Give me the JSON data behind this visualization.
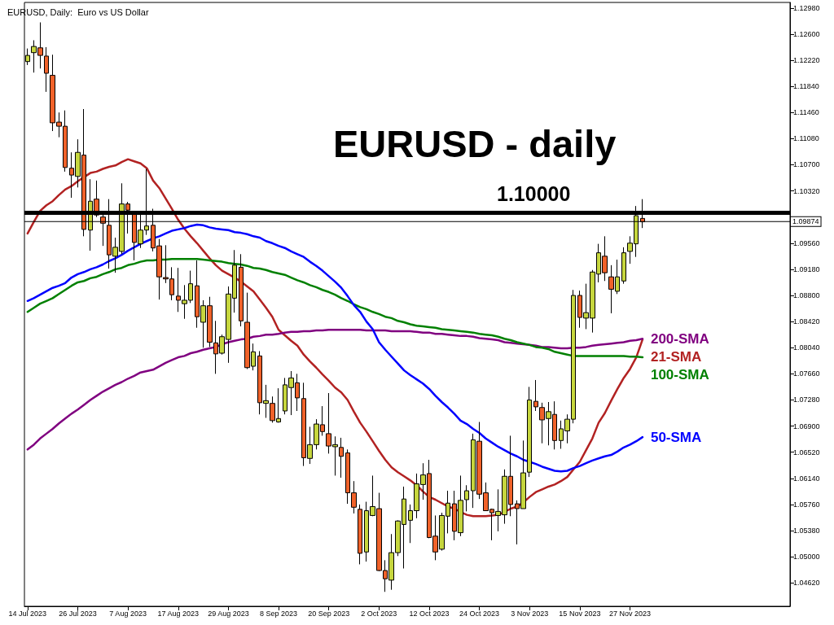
{
  "chart_data": {
    "type": "candlestick",
    "title": "EURUSD - daily",
    "subtitle": "EURUSD, Daily:  Euro vs US Dollar",
    "categories": [
      "14 Jul 2023",
      null,
      null,
      null,
      null,
      null,
      null,
      null,
      "26 Jul 2023",
      null,
      null,
      null,
      null,
      null,
      null,
      null,
      "7 Aug 2023",
      null,
      null,
      null,
      null,
      null,
      null,
      null,
      "17 Aug 2023",
      null,
      null,
      null,
      null,
      null,
      null,
      null,
      "29 Aug 2023",
      null,
      null,
      null,
      null,
      null,
      null,
      null,
      "8 Sep 2023",
      null,
      null,
      null,
      null,
      null,
      null,
      null,
      "20 Sep 2023",
      null,
      null,
      null,
      null,
      null,
      null,
      null,
      "2 Oct 2023",
      null,
      null,
      null,
      null,
      null,
      null,
      null,
      "12 Oct 2023",
      null,
      null,
      null,
      null,
      null,
      null,
      null,
      "24 Oct 2023",
      null,
      null,
      null,
      null,
      null,
      null,
      null,
      "3 Nov 2023",
      null,
      null,
      null,
      null,
      null,
      null,
      null,
      "15 Nov 2023",
      null,
      null,
      null,
      null,
      null,
      null,
      null,
      "27 Nov 2023",
      null,
      null
    ],
    "ohlc": [
      [
        1.122,
        1.1239,
        1.1215,
        1.1229
      ],
      [
        1.1233,
        1.1251,
        1.1204,
        1.1242
      ],
      [
        1.124,
        1.1277,
        1.121,
        1.1229
      ],
      [
        1.1228,
        1.1241,
        1.1176,
        1.1203
      ],
      [
        1.12,
        1.123,
        1.1119,
        1.1131
      ],
      [
        1.1132,
        1.1146,
        1.111,
        1.1126
      ],
      [
        1.1126,
        1.1149,
        1.106,
        1.1066
      ],
      [
        1.1065,
        1.1088,
        1.1022,
        1.1055
      ],
      [
        1.1053,
        1.1107,
        1.1037,
        1.1088
      ],
      [
        1.1084,
        1.1151,
        1.0966,
        1.0976
      ],
      [
        1.0975,
        1.1049,
        1.0945,
        1.1017
      ],
      [
        1.102,
        1.1047,
        1.0994,
        1.0997
      ],
      [
        1.0994,
        1.1002,
        1.0952,
        1.0985
      ],
      [
        1.0982,
        1.102,
        1.0919,
        1.0939
      ],
      [
        1.0937,
        1.0964,
        1.0913,
        1.095
      ],
      [
        1.0944,
        1.1043,
        1.094,
        1.1013
      ],
      [
        1.1013,
        1.1016,
        1.097,
        1.1004
      ],
      [
        1.0998,
        1.1002,
        1.0931,
        1.0957
      ],
      [
        1.0955,
        1.0998,
        1.0949,
        1.0975
      ],
      [
        1.0975,
        1.1064,
        1.0968,
        1.0981
      ],
      [
        1.0982,
        1.1006,
        1.0944,
        1.0949
      ],
      [
        1.0952,
        1.0962,
        1.0874,
        1.0907
      ],
      [
        1.0906,
        1.0953,
        1.0898,
        1.0904
      ],
      [
        1.0904,
        1.0921,
        1.0873,
        1.0881
      ],
      [
        1.0879,
        1.092,
        1.0856,
        1.0873
      ],
      [
        1.0868,
        1.0895,
        1.0846,
        1.0873
      ],
      [
        1.0873,
        1.0916,
        1.0869,
        1.0897
      ],
      [
        1.0894,
        1.0931,
        1.0833,
        1.0849
      ],
      [
        1.0841,
        1.0873,
        1.0804,
        1.0865
      ],
      [
        1.0865,
        1.0878,
        1.0805,
        1.0812
      ],
      [
        1.0811,
        1.0843,
        1.0766,
        1.0795
      ],
      [
        1.0796,
        1.0823,
        1.0794,
        1.082
      ],
      [
        1.0816,
        1.0893,
        1.0782,
        1.0882
      ],
      [
        1.0876,
        1.0946,
        1.0855,
        1.0924
      ],
      [
        1.0921,
        1.094,
        1.0835,
        1.0843
      ],
      [
        1.0841,
        1.0884,
        1.0773,
        1.0775
      ],
      [
        1.0777,
        1.081,
        1.0771,
        1.0798
      ],
      [
        1.0792,
        1.0799,
        1.0707,
        1.0724
      ],
      [
        1.0723,
        1.075,
        1.0702,
        1.0727
      ],
      [
        1.0723,
        1.0733,
        1.0695,
        1.0698
      ],
      [
        1.0696,
        1.0745,
        1.0695,
        1.0701
      ],
      [
        1.0712,
        1.076,
        1.0707,
        1.075
      ],
      [
        1.0746,
        1.077,
        1.0706,
        1.076
      ],
      [
        1.0753,
        1.0766,
        1.0712,
        1.0731
      ],
      [
        1.073,
        1.0753,
        1.0632,
        1.0644
      ],
      [
        1.0643,
        1.0689,
        1.0635,
        1.0663
      ],
      [
        1.0663,
        1.07,
        1.0656,
        1.0693
      ],
      [
        1.0692,
        1.0719,
        1.0676,
        1.0682
      ],
      [
        1.0679,
        1.0738,
        1.065,
        1.0661
      ],
      [
        1.066,
        1.0675,
        1.0618,
        1.0663
      ],
      [
        1.0659,
        1.0673,
        1.0615,
        1.0646
      ],
      [
        1.0651,
        1.0656,
        1.0577,
        1.0593
      ],
      [
        1.0593,
        1.061,
        1.0563,
        1.0572
      ],
      [
        1.0569,
        1.0576,
        1.0489,
        1.0505
      ],
      [
        1.0507,
        1.058,
        1.0493,
        1.0567
      ],
      [
        1.056,
        1.0618,
        1.0559,
        1.0573
      ],
      [
        1.057,
        1.0593,
        1.0479,
        1.048
      ],
      [
        1.048,
        1.0495,
        1.0449,
        1.0468
      ],
      [
        1.0466,
        1.0533,
        1.0452,
        1.0506
      ],
      [
        1.0506,
        1.0553,
        1.0501,
        1.0552
      ],
      [
        1.0547,
        1.0602,
        1.0483,
        1.0584
      ],
      [
        1.0553,
        1.0576,
        1.052,
        1.0567
      ],
      [
        1.0567,
        1.0621,
        1.0556,
        1.0606
      ],
      [
        1.0605,
        1.0636,
        1.0583,
        1.0619
      ],
      [
        1.0621,
        1.0641,
        1.0527,
        1.0528
      ],
      [
        1.053,
        1.056,
        1.0495,
        1.0507
      ],
      [
        1.0511,
        1.0564,
        1.0509,
        1.056
      ],
      [
        1.0559,
        1.0596,
        1.0534,
        1.0578
      ],
      [
        1.0577,
        1.0596,
        1.0524,
        1.0537
      ],
      [
        1.0535,
        1.0618,
        1.053,
        1.0582
      ],
      [
        1.0583,
        1.0604,
        1.0566,
        1.0596
      ],
      [
        1.0596,
        1.0679,
        1.0571,
        1.067
      ],
      [
        1.0668,
        1.0696,
        1.0584,
        1.0591
      ],
      [
        1.0593,
        1.0608,
        1.0567,
        1.0567
      ],
      [
        1.0569,
        1.057,
        1.0524,
        1.0564
      ],
      [
        1.056,
        1.0598,
        1.0537,
        1.0566
      ],
      [
        1.0561,
        1.0627,
        1.0548,
        1.0617
      ],
      [
        1.0617,
        1.0676,
        1.0559,
        1.0576
      ],
      [
        1.0577,
        1.0582,
        1.0518,
        1.057
      ],
      [
        1.057,
        1.0669,
        1.057,
        1.0622
      ],
      [
        1.0623,
        1.0747,
        1.0616,
        1.0728
      ],
      [
        1.0726,
        1.0757,
        1.0712,
        1.0718
      ],
      [
        1.0717,
        1.0724,
        1.0665,
        1.0699
      ],
      [
        1.0701,
        1.0725,
        1.0662,
        1.0711
      ],
      [
        1.0707,
        1.0726,
        1.0656,
        1.0669
      ],
      [
        1.0669,
        1.0698,
        1.0657,
        1.0686
      ],
      [
        1.0683,
        1.0707,
        1.0665,
        1.07
      ],
      [
        1.07,
        1.0888,
        1.0694,
        1.088
      ],
      [
        1.088,
        1.0887,
        1.0833,
        1.0848
      ],
      [
        1.0847,
        1.0897,
        1.0831,
        1.0855
      ],
      [
        1.0847,
        1.0917,
        1.0826,
        1.0914
      ],
      [
        1.0911,
        1.0955,
        1.0899,
        1.0942
      ],
      [
        1.0937,
        1.0966,
        1.0901,
        1.0913
      ],
      [
        1.0907,
        1.0924,
        1.0854,
        1.0889
      ],
      [
        1.0886,
        1.0932,
        1.0882,
        1.0907
      ],
      [
        1.0901,
        1.095,
        1.0897,
        1.0942
      ],
      [
        1.0944,
        1.0966,
        1.0926,
        1.0956
      ],
      [
        1.0955,
        1.101,
        1.0936,
        1.0996
      ],
      [
        1.0992,
        1.102,
        1.0978,
        1.0987
      ]
    ],
    "colors": [
      "#c6d63e",
      "#c6d63e",
      "#f0622a",
      "#f0622a",
      "#f0622a",
      "#f0622a",
      "#f0622a",
      "#f0622a",
      "#c6d63e",
      "#f0622a",
      "#c6d63e",
      "#f0622a",
      "#f0622a",
      "#f0622a",
      "#c6d63e",
      "#c6d63e",
      "#f0622a",
      "#f0622a",
      "#c6d63e",
      "#c6d63e",
      "#f0622a",
      "#f0622a",
      "#f0622a",
      "#f0622a",
      "#f0622a",
      "#c6d63e",
      "#c6d63e",
      "#f0622a",
      "#c6d63e",
      "#f0622a",
      "#f0622a",
      "#c6d63e",
      "#c6d63e",
      "#c6d63e",
      "#f0622a",
      "#f0622a",
      "#c6d63e",
      "#f0622a",
      "#c6d63e",
      "#f0622a",
      "#c6d63e",
      "#c6d63e",
      "#c6d63e",
      "#f0622a",
      "#f0622a",
      "#c6d63e",
      "#c6d63e",
      "#f0622a",
      "#f0622a",
      "#c6d63e",
      "#f0622a",
      "#f0622a",
      "#f0622a",
      "#f0622a",
      "#c6d63e",
      "#c6d63e",
      "#f0622a",
      "#f0622a",
      "#c6d63e",
      "#c6d63e",
      "#c6d63e",
      "#c6d63e",
      "#c6d63e",
      "#c6d63e",
      "#f0622a",
      "#f0622a",
      "#c6d63e",
      "#c6d63e",
      "#f0622a",
      "#c6d63e",
      "#c6d63e",
      "#c6d63e",
      "#f0622a",
      "#f0622a",
      "#f0622a",
      "#c6d63e",
      "#c6d63e",
      "#f0622a",
      "#f0622a",
      "#c6d63e",
      "#c6d63e",
      "#f0622a",
      "#f0622a",
      "#c6d63e",
      "#f0622a",
      "#c6d63e",
      "#c6d63e",
      "#c6d63e",
      "#f0622a",
      "#c6d63e",
      "#c6d63e",
      "#c6d63e",
      "#f0622a",
      "#f0622a",
      "#c6d63e",
      "#c6d63e",
      "#c6d63e",
      "#c6d63e",
      "#f0622a"
    ],
    "series": [
      {
        "type": "line",
        "name": "21-SMA",
        "color": "#b22222",
        "values": [
          1.097,
          1.0987,
          1.1003,
          1.1011,
          1.1017,
          1.1026,
          1.1034,
          1.1039,
          1.1046,
          1.1052,
          1.1058,
          1.106,
          1.1064,
          1.1067,
          1.1069,
          1.1074,
          1.1078,
          1.1075,
          1.1072,
          1.1065,
          1.1047,
          1.1036,
          1.1021,
          1.1006,
          1.099,
          1.0977,
          1.0966,
          1.0956,
          1.0945,
          1.0934,
          1.0924,
          1.0916,
          1.0911,
          1.0906,
          1.09,
          1.0893,
          1.0886,
          1.0874,
          1.0862,
          1.0849,
          1.083,
          1.0822,
          1.0814,
          1.0807,
          1.0794,
          1.0784,
          1.0775,
          1.0765,
          1.0756,
          1.0746,
          1.0739,
          1.0728,
          1.0711,
          1.0695,
          1.0682,
          1.0668,
          1.0654,
          1.0641,
          1.063,
          1.0623,
          1.0617,
          1.0611,
          1.0604,
          1.0595,
          1.0587,
          1.0583,
          1.0578,
          1.0573,
          1.057,
          1.0565,
          1.0561,
          1.0559,
          1.0559,
          1.0559,
          1.056,
          1.0561,
          1.0565,
          1.057,
          1.0573,
          1.0579,
          1.0587,
          1.0594,
          1.0598,
          1.0602,
          1.0605,
          1.061,
          1.0616,
          1.0627,
          1.0638,
          1.0655,
          1.0672,
          1.0695,
          1.0709,
          1.0727,
          1.0744,
          1.076,
          1.0773,
          1.079,
          1.0816
        ]
      },
      {
        "type": "line",
        "name": "200-SMA",
        "color": "#800080",
        "values": [
          1.0656,
          1.0663,
          1.0672,
          1.0679,
          1.0686,
          1.0694,
          1.0701,
          1.0708,
          1.0714,
          1.0721,
          1.0728,
          1.0734,
          1.074,
          1.0745,
          1.075,
          1.0754,
          1.0759,
          1.0763,
          1.0768,
          1.077,
          1.0772,
          1.0777,
          1.0782,
          1.0786,
          1.079,
          1.0792,
          1.0796,
          1.0798,
          1.0801,
          1.0803,
          1.0805,
          1.0809,
          1.0812,
          1.0814,
          1.0816,
          1.0817,
          1.082,
          1.0821,
          1.0823,
          1.0823,
          1.0824,
          1.0826,
          1.0827,
          1.0827,
          1.0828,
          1.0828,
          1.0829,
          1.0829,
          1.083,
          1.083,
          1.083,
          1.083,
          1.083,
          1.083,
          1.0829,
          1.0829,
          1.0829,
          1.0829,
          1.0828,
          1.0828,
          1.0828,
          1.0828,
          1.0827,
          1.0826,
          1.0826,
          1.0824,
          1.0824,
          1.0823,
          1.0822,
          1.0821,
          1.0821,
          1.082,
          1.0818,
          1.0817,
          1.0816,
          1.0815,
          1.0812,
          1.0811,
          1.081,
          1.0809,
          1.0808,
          1.0807,
          1.0805,
          1.0805,
          1.0804,
          1.0803,
          1.0803,
          1.0804,
          1.0804,
          1.0805,
          1.0807,
          1.0808,
          1.0809,
          1.081,
          1.0811,
          1.0812,
          1.0814,
          1.0815,
          1.0817
        ]
      },
      {
        "type": "line",
        "name": "100-SMA",
        "color": "#008000",
        "values": [
          1.0856,
          1.0862,
          1.0868,
          1.0872,
          1.0876,
          1.0882,
          1.0888,
          1.0894,
          1.0899,
          1.0901,
          1.0905,
          1.0907,
          1.0911,
          1.0914,
          1.0918,
          1.092,
          1.0924,
          1.0926,
          1.0929,
          1.0931,
          1.0931,
          1.0932,
          1.0932,
          1.0933,
          1.0933,
          1.0933,
          1.0933,
          1.0933,
          1.0932,
          1.0931,
          1.093,
          1.0929,
          1.0927,
          1.0926,
          1.0925,
          1.0923,
          1.092,
          1.0919,
          1.0917,
          1.0914,
          1.0912,
          1.091,
          1.0906,
          1.0902,
          1.0899,
          1.0895,
          1.0892,
          1.0888,
          1.0885,
          1.0881,
          1.0876,
          1.0872,
          1.0867,
          1.0863,
          1.086,
          1.0856,
          1.0853,
          1.0849,
          1.0847,
          1.0843,
          1.0841,
          1.0838,
          1.0836,
          1.0835,
          1.0834,
          1.0833,
          1.0831,
          1.083,
          1.0829,
          1.0828,
          1.0827,
          1.0826,
          1.0824,
          1.0823,
          1.0822,
          1.082,
          1.0817,
          1.0815,
          1.0812,
          1.081,
          1.0808,
          1.0805,
          1.0804,
          1.0802,
          1.0798,
          1.0796,
          1.0794,
          1.0792,
          1.0792,
          1.0792,
          1.0792,
          1.0792,
          1.0792,
          1.0792,
          1.0792,
          1.0792,
          1.0791,
          1.0791,
          1.079
        ]
      },
      {
        "type": "line",
        "name": "50-SMA",
        "color": "#0000ff",
        "values": [
          1.0872,
          1.0876,
          1.0881,
          1.0886,
          1.0891,
          1.0894,
          1.0898,
          1.0906,
          1.0911,
          1.0914,
          1.0918,
          1.0921,
          1.0925,
          1.093,
          1.0934,
          1.0939,
          1.0945,
          1.095,
          1.0955,
          1.0959,
          1.0963,
          1.0966,
          1.097,
          1.0974,
          1.0976,
          1.0978,
          1.0981,
          1.0983,
          1.0982,
          1.0979,
          1.0977,
          1.0976,
          1.0975,
          1.0972,
          1.0971,
          1.0969,
          1.0966,
          1.0964,
          1.0959,
          1.0956,
          1.0952,
          1.0949,
          1.0944,
          1.094,
          1.0936,
          1.0929,
          1.0923,
          1.0916,
          1.0908,
          1.09,
          1.0891,
          1.0879,
          1.0866,
          1.0856,
          1.0842,
          1.0831,
          1.0812,
          1.0801,
          1.0791,
          1.0781,
          1.0771,
          1.0764,
          1.0758,
          1.0752,
          1.0744,
          1.0734,
          1.0725,
          1.0717,
          1.0708,
          1.0698,
          1.0693,
          1.0686,
          1.068,
          1.0672,
          1.0666,
          1.066,
          1.0655,
          1.065,
          1.0646,
          1.0641,
          1.0638,
          1.0635,
          1.0631,
          1.0628,
          1.0625,
          1.0624,
          1.0625,
          1.0629,
          1.0632,
          1.0636,
          1.064,
          1.0643,
          1.0646,
          1.0648,
          1.0653,
          1.0659,
          1.0663,
          1.0668,
          1.0674
        ]
      }
    ],
    "ylim": [
      1.0428,
      1.1306
    ],
    "yticks": [
      {
        "value": 1.0462,
        "label": "1.04620"
      },
      {
        "value": 1.05,
        "label": "1.05000"
      },
      {
        "value": 1.0538,
        "label": "1.05380"
      },
      {
        "value": 1.0576,
        "label": "1.05760"
      },
      {
        "value": 1.0614,
        "label": "1.06140"
      },
      {
        "value": 1.0652,
        "label": "1.06520"
      },
      {
        "value": 1.069,
        "label": "1.06900"
      },
      {
        "value": 1.0728,
        "label": "1.07280"
      },
      {
        "value": 1.0766,
        "label": "1.07660"
      },
      {
        "value": 1.0804,
        "label": "1.08040"
      },
      {
        "value": 1.0842,
        "label": "1.08420"
      },
      {
        "value": 1.088,
        "label": "1.08800"
      },
      {
        "value": 1.0918,
        "label": "1.09180"
      },
      {
        "value": 1.0956,
        "label": "1.09560"
      },
      {
        "value": 1.1032,
        "label": "1.10320"
      },
      {
        "value": 1.107,
        "label": "1.10700"
      },
      {
        "value": 1.1108,
        "label": "1.11080"
      },
      {
        "value": 1.1146,
        "label": "1.11460"
      },
      {
        "value": 1.1184,
        "label": "1.11840"
      },
      {
        "value": 1.1222,
        "label": "1.12220"
      },
      {
        "value": 1.126,
        "label": "1.12600"
      },
      {
        "value": 1.1298,
        "label": "1.12980"
      }
    ],
    "ref_lines": [
      {
        "axis": "y",
        "value": 1.1,
        "label": "1.10000",
        "color": "#000000"
      },
      {
        "axis": "y",
        "value": 1.09874,
        "label": "1.09874",
        "color": "#000000"
      }
    ],
    "grid": false,
    "legend": false
  }
}
